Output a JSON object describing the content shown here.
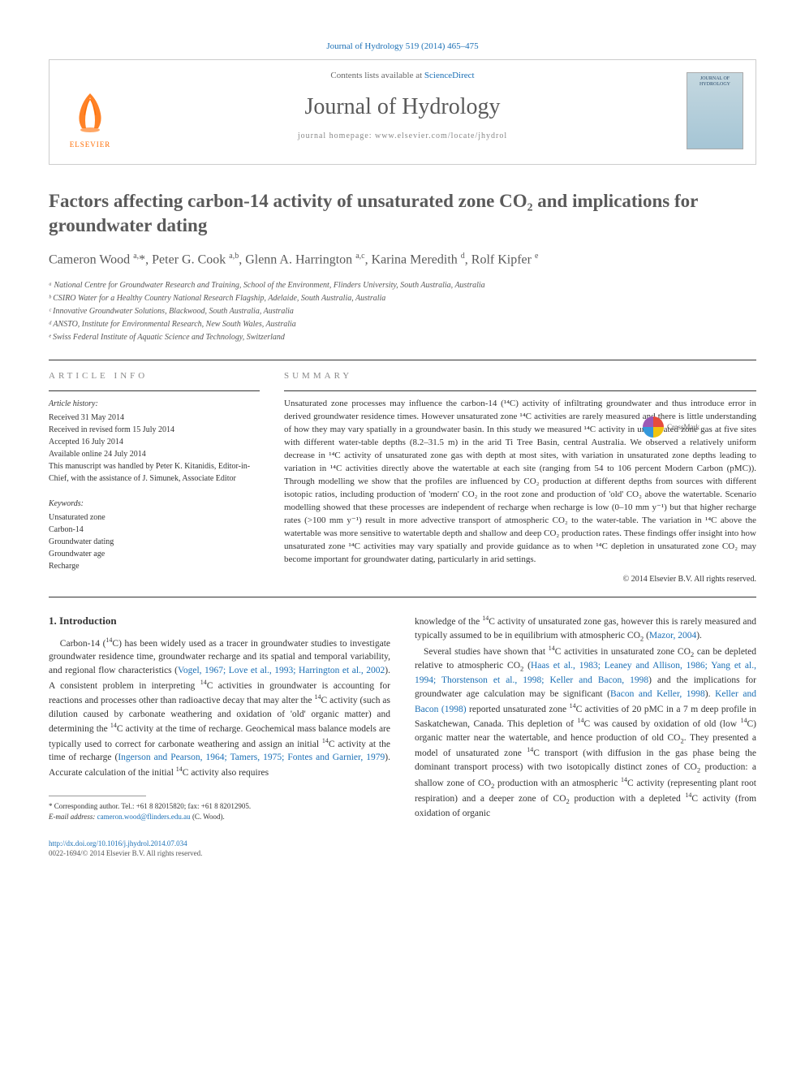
{
  "citation": "Journal of Hydrology 519 (2014) 465–475",
  "contents_prefix": "Contents lists available at ",
  "contents_link": "ScienceDirect",
  "journal_name": "Journal of Hydrology",
  "homepage_prefix": "journal homepage: ",
  "homepage_url": "www.elsevier.com/locate/jhydrol",
  "publisher_name": "ELSEVIER",
  "cover_label": "JOURNAL OF HYDROLOGY",
  "crossmark_label": "CrossMark",
  "title": "Factors affecting carbon-14 activity of unsaturated zone CO₂ and implications for groundwater dating",
  "authors_html": "Cameron Wood <sup>a,</sup>*, Peter G. Cook <sup>a,b</sup>, Glenn A. Harrington <sup>a,c</sup>, Karina Meredith <sup>d</sup>, Rolf Kipfer <sup>e</sup>",
  "affiliations": [
    "ᵃ National Centre for Groundwater Research and Training, School of the Environment, Flinders University, South Australia, Australia",
    "ᵇ CSIRO Water for a Healthy Country National Research Flagship, Adelaide, South Australia, Australia",
    "ᶜ Innovative Groundwater Solutions, Blackwood, South Australia, Australia",
    "ᵈ ANSTO, Institute for Environmental Research, New South Wales, Australia",
    "ᵉ Swiss Federal Institute of Aquatic Science and Technology, Switzerland"
  ],
  "article_info_label": "ARTICLE INFO",
  "summary_label": "SUMMARY",
  "history_label": "Article history:",
  "history": [
    "Received 31 May 2014",
    "Received in revised form 15 July 2014",
    "Accepted 16 July 2014",
    "Available online 24 July 2014",
    "This manuscript was handled by Peter K. Kitanidis, Editor-in-Chief, with the assistance of J. Simunek, Associate Editor"
  ],
  "keywords_label": "Keywords:",
  "keywords": [
    "Unsaturated zone",
    "Carbon-14",
    "Groundwater dating",
    "Groundwater age",
    "Recharge"
  ],
  "summary": "Unsaturated zone processes may influence the carbon-14 (¹⁴C) activity of infiltrating groundwater and thus introduce error in derived groundwater residence times. However unsaturated zone ¹⁴C activities are rarely measured and there is little understanding of how they may vary spatially in a groundwater basin. In this study we measured ¹⁴C activity in unsaturated zone gas at five sites with different water-table depths (8.2–31.5 m) in the arid Ti Tree Basin, central Australia. We observed a relatively uniform decrease in ¹⁴C activity of unsaturated zone gas with depth at most sites, with variation in unsaturated zone depths leading to variation in ¹⁴C activities directly above the watertable at each site (ranging from 54 to 106 percent Modern Carbon (pMC)). Through modelling we show that the profiles are influenced by CO₂ production at different depths from sources with different isotopic ratios, including production of 'modern' CO₂ in the root zone and production of 'old' CO₂ above the watertable. Scenario modelling showed that these processes are independent of recharge when recharge is low (0–10 mm y⁻¹) but that higher recharge rates (>100 mm y⁻¹) result in more advective transport of atmospheric CO₂ to the water-table. The variation in ¹⁴C above the watertable was more sensitive to watertable depth and shallow and deep CO₂ production rates. These findings offer insight into how unsaturated zone ¹⁴C activities may vary spatially and provide guidance as to when ¹⁴C depletion in unsaturated zone CO₂ may become important for groundwater dating, particularly in arid settings.",
  "copyright": "© 2014 Elsevier B.V. All rights reserved.",
  "intro_heading": "1. Introduction",
  "intro_col1_html": "Carbon-14 (<sup>14</sup>C) has been widely used as a tracer in groundwater studies to investigate groundwater residence time, groundwater recharge and its spatial and temporal variability, and regional flow characteristics (<span class='ref-link'>Vogel, 1967; Love et al., 1993; Harrington et al., 2002</span>). A consistent problem in interpreting <sup>14</sup>C activities in groundwater is accounting for reactions and processes other than radioactive decay that may alter the <sup>14</sup>C activity (such as dilution caused by carbonate weathering and oxidation of 'old' organic matter) and determining the <sup>14</sup>C activity at the time of recharge. Geochemical mass balance models are typically used to correct for carbonate weathering and assign an initial <sup>14</sup>C activity at the time of recharge (<span class='ref-link'>Ingerson and Pearson, 1964; Tamers, 1975; Fontes and Garnier, 1979</span>). Accurate calculation of the initial <sup>14</sup>C activity also requires",
  "intro_col2_html": "knowledge of the <sup>14</sup>C activity of unsaturated zone gas, however this is rarely measured and typically assumed to be in equilibrium with atmospheric CO<sub>2</sub> (<span class='ref-link'>Mazor, 2004</span>).<br>&nbsp;&nbsp;&nbsp;Several studies have shown that <sup>14</sup>C activities in unsaturated zone CO<sub>2</sub> can be depleted relative to atmospheric CO<sub>2</sub> (<span class='ref-link'>Haas et al., 1983; Leaney and Allison, 1986; Yang et al., 1994; Thorstenson et al., 1998; Keller and Bacon, 1998</span>) and the implications for groundwater age calculation may be significant (<span class='ref-link'>Bacon and Keller, 1998</span>). <span class='ref-link'>Keller and Bacon (1998)</span> reported unsaturated zone <sup>14</sup>C activities of 20 pMC in a 7 m deep profile in Saskatchewan, Canada. This depletion of <sup>14</sup>C was caused by oxidation of old (low <sup>14</sup>C) organic matter near the watertable, and hence production of old CO<sub>2</sub>. They presented a model of unsaturated zone <sup>14</sup>C transport (with diffusion in the gas phase being the dominant transport process) with two isotopically distinct zones of CO<sub>2</sub> production: a shallow zone of CO<sub>2</sub> production with an atmospheric <sup>14</sup>C activity (representing plant root respiration) and a deeper zone of CO<sub>2</sub> production with a depleted <sup>14</sup>C activity (from oxidation of organic",
  "corresponding": "* Corresponding author. Tel.: +61 8 82015820; fax: +61 8 82012905.",
  "email_label": "E-mail address: ",
  "email": "cameron.wood@flinders.edu.au",
  "email_suffix": " (C. Wood).",
  "doi_url": "http://dx.doi.org/10.1016/j.jhydrol.2014.07.034",
  "issn_line": "0022-1694/© 2014 Elsevier B.V. All rights reserved.",
  "colors": {
    "link": "#1a6fb5",
    "text": "#333333",
    "heading": "#5a5a5a",
    "elsevier_orange": "#ff6c00"
  }
}
